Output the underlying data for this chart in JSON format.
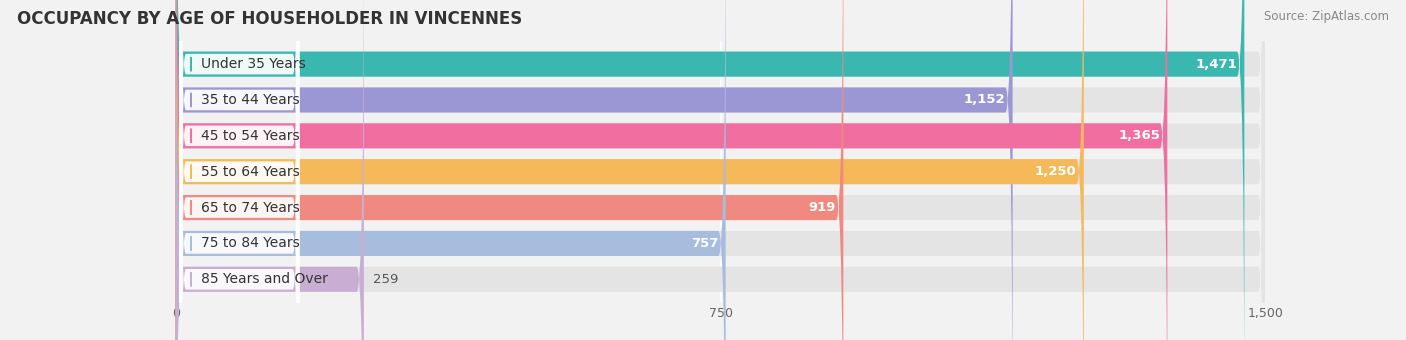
{
  "title": "OCCUPANCY BY AGE OF HOUSEHOLDER IN VINCENNES",
  "source": "Source: ZipAtlas.com",
  "categories": [
    "Under 35 Years",
    "35 to 44 Years",
    "45 to 54 Years",
    "55 to 64 Years",
    "65 to 74 Years",
    "75 to 84 Years",
    "85 Years and Over"
  ],
  "values": [
    1471,
    1152,
    1365,
    1250,
    919,
    757,
    259
  ],
  "bar_colors": [
    "#3ab8b0",
    "#9b97d4",
    "#f06fa0",
    "#f5b95a",
    "#f08a80",
    "#a8bcde",
    "#c9aed4"
  ],
  "xlim_min": 0,
  "xlim_max": 1500,
  "xticks": [
    0,
    750,
    1500
  ],
  "background_color": "#f2f2f2",
  "bar_bg_color": "#e4e4e4",
  "title_fontsize": 12,
  "source_fontsize": 8.5,
  "label_fontsize": 10,
  "value_fontsize": 9.5,
  "value_inside_color": "white",
  "value_outside_color": "#555555",
  "inside_threshold": 700
}
